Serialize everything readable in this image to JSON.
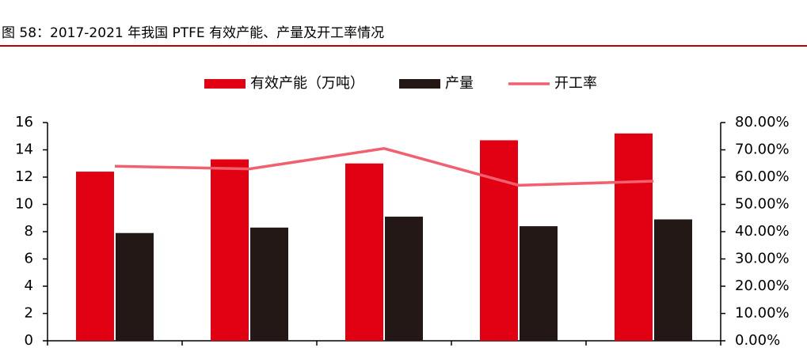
{
  "chart_data": {
    "type": "bar",
    "title": "图 58：2017-2021 年我国 PTFE 有效产能、产量及开工率情况",
    "categories": [
      null,
      null,
      null,
      null,
      null
    ],
    "series": [
      {
        "name": "有效产能（万吨）",
        "color": "#e00012",
        "values": [
          12.4,
          13.3,
          13.0,
          14.7,
          15.2
        ]
      },
      {
        "name": "产量",
        "color": "#231815",
        "values": [
          7.9,
          8.3,
          9.1,
          8.4,
          8.9
        ]
      },
      {
        "name": "开工率",
        "color": "#f0606e",
        "type": "line",
        "axis": "y2",
        "values": [
          64,
          63,
          70.5,
          57,
          58.5
        ]
      }
    ],
    "ylim": [
      0,
      16
    ],
    "yticks": [
      0,
      2,
      4,
      6,
      8,
      10,
      12,
      14,
      16
    ],
    "y2lim": [
      0,
      80
    ],
    "y2ticks": [
      {
        "value": 0,
        "label": "0.00%"
      },
      {
        "value": 10,
        "label": "10.00%"
      },
      {
        "value": 20,
        "label": "20.00%"
      },
      {
        "value": 30,
        "label": "30.00%"
      },
      {
        "value": 40,
        "label": "40.00%"
      },
      {
        "value": 50,
        "label": "50.00%"
      },
      {
        "value": 60,
        "label": "60.00%"
      },
      {
        "value": 70,
        "label": "70.00%"
      },
      {
        "value": 80,
        "label": "80.00%"
      }
    ],
    "grid": false,
    "legend": "top"
  }
}
